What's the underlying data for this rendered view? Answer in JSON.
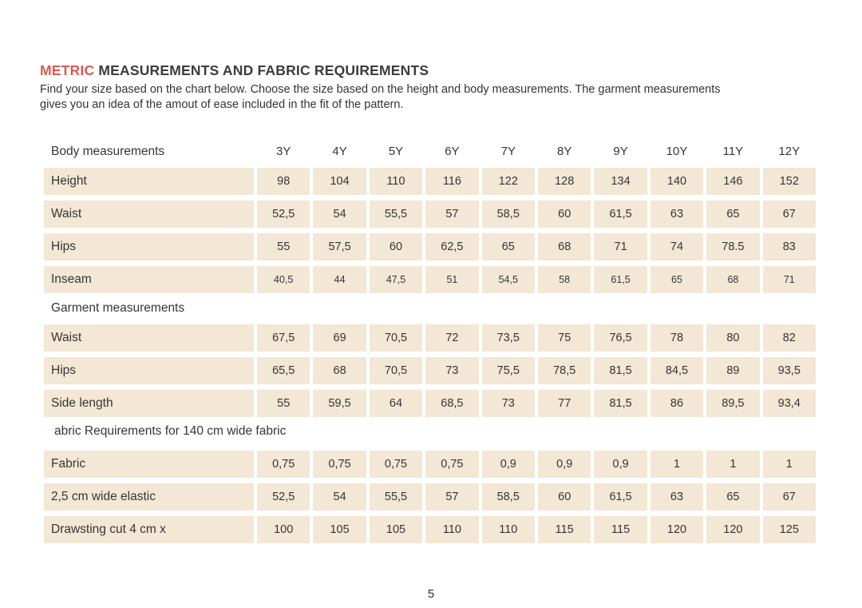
{
  "document": {
    "title": {
      "highlight": "METRIC",
      "rest": "MEASUREMENTS AND FABRIC REQUIREMENTS"
    },
    "intro_lines": [
      "Find your size based on the chart below. Choose the size based on the height and body measurements. The garment measurements",
      "gives you an idea of the amout of ease included in the fit of the pattern."
    ],
    "page_number": "5"
  },
  "colors": {
    "accent_red": "#d85a52",
    "cell_beige": "#f3e7d5",
    "text_dark": "#363636"
  },
  "size_table": {
    "size_headers": [
      "3Y",
      "4Y",
      "5Y",
      "6Y",
      "7Y",
      "8Y",
      "9Y",
      "10Y",
      "11Y",
      "12Y"
    ],
    "sections": [
      {
        "title": "Body measurements",
        "show_sizes_in_header": true,
        "rows": [
          {
            "label": "Height",
            "values": [
              "98",
              "104",
              "110",
              "116",
              "122",
              "128",
              "134",
              "140",
              "146",
              "152"
            ]
          },
          {
            "label": "Waist",
            "values": [
              "52,5",
              "54",
              "55,5",
              "57",
              "58,5",
              "60",
              "61,5",
              "63",
              "65",
              "67"
            ]
          },
          {
            "label": "Hips",
            "values": [
              "55",
              "57,5",
              "60",
              "62,5",
              "65",
              "68",
              "71",
              "74",
              "78.5",
              "83"
            ]
          },
          {
            "label": "Inseam",
            "values": [
              "40,5",
              "44",
              "47,5",
              "51",
              "54,5",
              "58",
              "61,5",
              "65",
              "68",
              "71"
            ],
            "small_values": true
          }
        ]
      },
      {
        "title": "Garment measurements",
        "rows": [
          {
            "label": "Waist",
            "values": [
              "67,5",
              "69",
              "70,5",
              "72",
              "73,5",
              "75",
              "76,5",
              "78",
              "80",
              "82"
            ]
          },
          {
            "label": "Hips",
            "values": [
              "65,5",
              "68",
              "70,5",
              "73",
              "75,5",
              "78,5",
              "81,5",
              "84,5",
              "89",
              "93,5"
            ]
          },
          {
            "label": "Side length",
            "values": [
              "55",
              "59,5",
              "64",
              "68,5",
              "73",
              "77",
              "81,5",
              "86",
              "89,5",
              "93,4"
            ]
          }
        ]
      },
      {
        "title": "abric Requirements for 140 cm wide fabric",
        "fabric_section": true,
        "rows": [
          {
            "label": "Fabric",
            "values": [
              "0,75",
              "0,75",
              "0,75",
              "0,75",
              "0,9",
              "0,9",
              "0,9",
              "1",
              "1",
              "1"
            ]
          },
          {
            "label": "2,5 cm wide elastic",
            "values": [
              "52,5",
              "54",
              "55,5",
              "57",
              "58,5",
              "60",
              "61,5",
              "63",
              "65",
              "67"
            ]
          },
          {
            "label": "Drawsting cut 4 cm x",
            "values": [
              "100",
              "105",
              "105",
              "110",
              "110",
              "115",
              "115",
              "120",
              "120",
              "125"
            ]
          }
        ]
      }
    ]
  }
}
